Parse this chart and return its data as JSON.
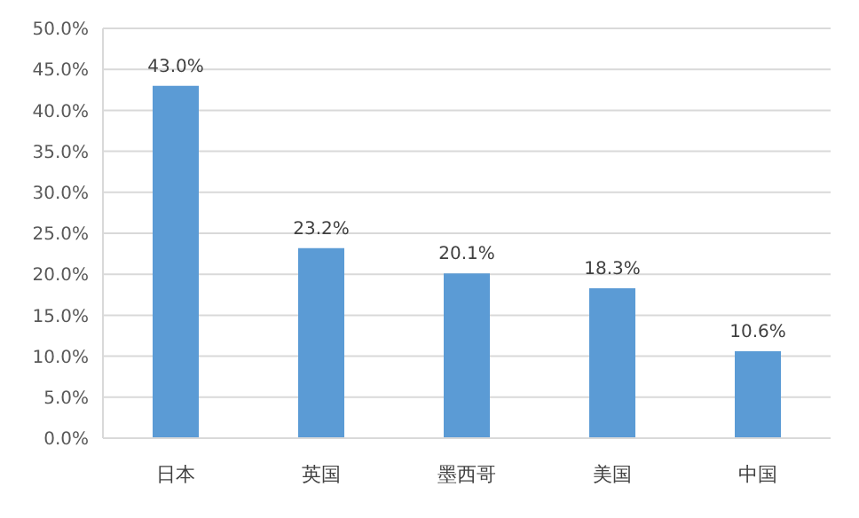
{
  "chart_data": {
    "type": "bar",
    "categories": [
      "日本",
      "英国",
      "墨西哥",
      "美国",
      "中国"
    ],
    "values": [
      43.0,
      23.2,
      20.1,
      18.3,
      10.6
    ],
    "value_labels": [
      "43.0%",
      "23.2%",
      "20.1%",
      "18.3%",
      "10.6%"
    ],
    "color": "#5b9bd5",
    "ylim": [
      0,
      50
    ],
    "yticks": [
      {
        "value": 0,
        "label": "0.0%"
      },
      {
        "value": 5,
        "label": "5.0%"
      },
      {
        "value": 10,
        "label": "10.0%"
      },
      {
        "value": 15,
        "label": "15.0%"
      },
      {
        "value": 20,
        "label": "20.0%"
      },
      {
        "value": 25,
        "label": "25.0%"
      },
      {
        "value": 30,
        "label": "30.0%"
      },
      {
        "value": 35,
        "label": "35.0%"
      },
      {
        "value": 40,
        "label": "40.0%"
      },
      {
        "value": 45,
        "label": "45.0%"
      },
      {
        "value": 50,
        "label": "50.0%"
      }
    ],
    "grid": "y"
  }
}
